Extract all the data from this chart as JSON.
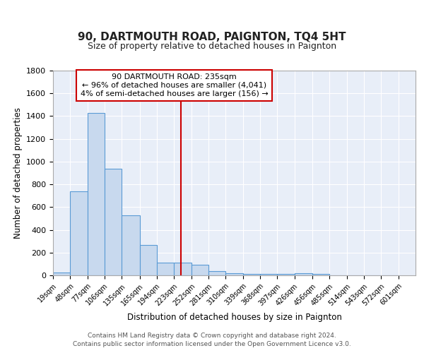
{
  "title": "90, DARTMOUTH ROAD, PAIGNTON, TQ4 5HT",
  "subtitle": "Size of property relative to detached houses in Paignton",
  "xlabel": "Distribution of detached houses by size in Paignton",
  "ylabel": "Number of detached properties",
  "bar_edges": [
    19,
    48,
    77,
    106,
    135,
    165,
    194,
    223,
    252,
    281,
    310,
    339,
    368,
    397,
    426,
    456,
    485,
    514,
    543,
    572,
    601
  ],
  "bar_heights": [
    25,
    740,
    1430,
    935,
    530,
    270,
    110,
    110,
    95,
    40,
    20,
    15,
    15,
    15,
    20,
    15,
    0,
    0,
    0,
    0
  ],
  "bar_color": "#c8d9ee",
  "bar_edge_color": "#5a9bd5",
  "background_color": "#e8eef8",
  "grid_color": "#ffffff",
  "red_line_x": 235,
  "annotation_title": "90 DARTMOUTH ROAD: 235sqm",
  "annotation_line1": "← 96% of detached houses are smaller (4,041)",
  "annotation_line2": "4% of semi-detached houses are larger (156) →",
  "annotation_box_color": "#ffffff",
  "annotation_border_color": "#cc0000",
  "red_line_color": "#cc0000",
  "yticks": [
    0,
    200,
    400,
    600,
    800,
    1000,
    1200,
    1400,
    1600,
    1800
  ],
  "tick_labels": [
    "19sqm",
    "48sqm",
    "77sqm",
    "106sqm",
    "135sqm",
    "165sqm",
    "194sqm",
    "223sqm",
    "252sqm",
    "281sqm",
    "310sqm",
    "339sqm",
    "368sqm",
    "397sqm",
    "426sqm",
    "456sqm",
    "485sqm",
    "514sqm",
    "543sqm",
    "572sqm",
    "601sqm"
  ],
  "footer_line1": "Contains HM Land Registry data © Crown copyright and database right 2024.",
  "footer_line2": "Contains public sector information licensed under the Open Government Licence v3.0."
}
